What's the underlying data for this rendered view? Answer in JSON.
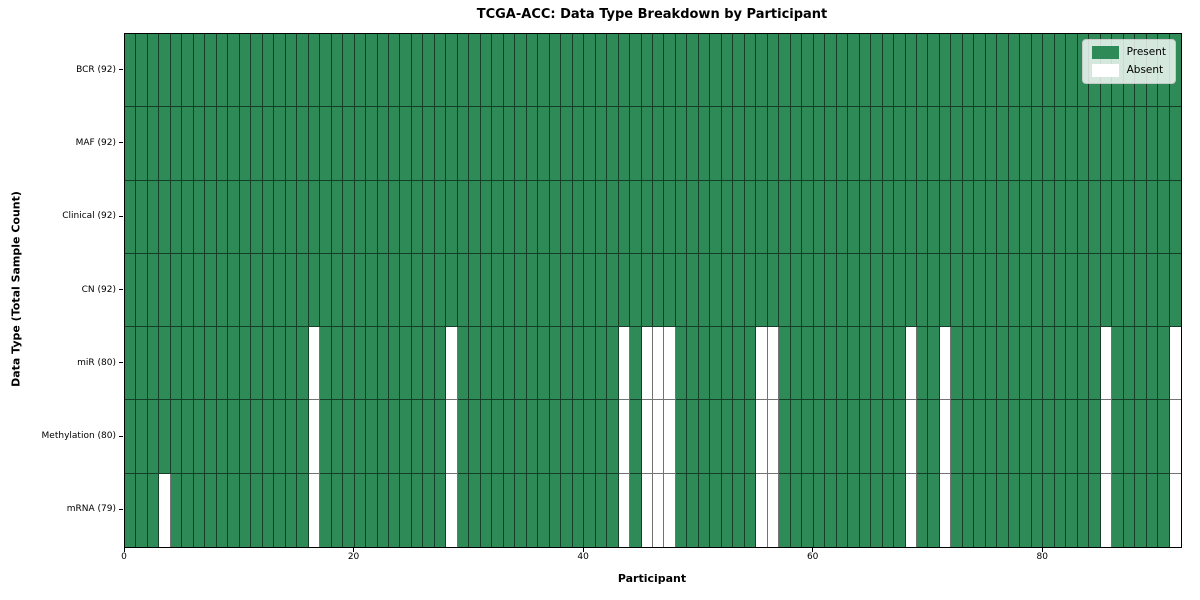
{
  "chart_data": {
    "type": "heatmap",
    "title": "TCGA-ACC: Data Type Breakdown by Participant",
    "xlabel": "Participant",
    "ylabel": "Data Type (Total Sample Count)",
    "x_axis": {
      "min": 0,
      "max": 92,
      "ticks": [
        0,
        20,
        40,
        60,
        80
      ]
    },
    "n_participants": 92,
    "rows": [
      {
        "label": "BCR (92)",
        "present_count": 92,
        "absent": []
      },
      {
        "label": "MAF (92)",
        "present_count": 92,
        "absent": []
      },
      {
        "label": "Clinical (92)",
        "present_count": 92,
        "absent": []
      },
      {
        "label": "CN (92)",
        "present_count": 92,
        "absent": []
      },
      {
        "label": "miR (80)",
        "present_count": 80,
        "absent": [
          16,
          28,
          43,
          45,
          46,
          47,
          55,
          56,
          68,
          71,
          85,
          91
        ]
      },
      {
        "label": "Methylation (80)",
        "present_count": 80,
        "absent": [
          16,
          28,
          43,
          45,
          46,
          47,
          55,
          56,
          68,
          71,
          85,
          91
        ]
      },
      {
        "label": "mRNA (79)",
        "present_count": 79,
        "absent": [
          3,
          16,
          28,
          43,
          45,
          46,
          47,
          55,
          56,
          68,
          71,
          85,
          91
        ]
      }
    ],
    "legend": [
      {
        "label": "Present",
        "color": "#2e8b57"
      },
      {
        "label": "Absent",
        "color": "#ffffff"
      }
    ],
    "colors": {
      "present": "#2e8b57",
      "absent": "#ffffff",
      "grid": "#000000",
      "background": "#ffffff"
    },
    "legend_position": "upper right",
    "grid": "cell-borders"
  }
}
